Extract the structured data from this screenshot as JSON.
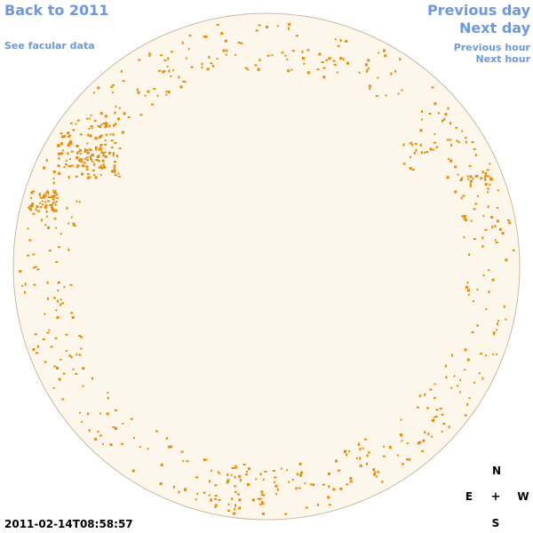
{
  "nav": {
    "back_label": "Back to 2011",
    "facular_label": "See facular data",
    "prev_day_label": "Previous day",
    "next_day_label": "Next day",
    "prev_hour_label": "Previous hour",
    "next_hour_label": "Next hour"
  },
  "timestamp": "2011-02-14T08:58:57",
  "compass": {
    "north": "N",
    "east": "E",
    "center": "+",
    "west": "W",
    "south": "S"
  },
  "colors": {
    "disk_fill": "#fdf7eb",
    "disk_edge": "#c9b9a3",
    "spot": "#e98c05",
    "link": "#6f97e0"
  }
}
